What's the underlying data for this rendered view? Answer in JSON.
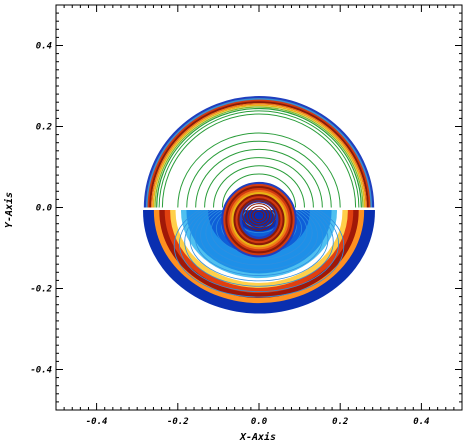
{
  "chart_data": {
    "type": "contour",
    "xlabel": "X-Axis",
    "ylabel": "Y-Axis",
    "xlim": [
      -0.5,
      0.5
    ],
    "ylim": [
      -0.5,
      0.5
    ],
    "x_ticks": [
      -0.4,
      -0.2,
      0.0,
      0.2,
      0.4
    ],
    "y_ticks": [
      -0.4,
      -0.2,
      0.0,
      0.2,
      0.4
    ],
    "x_tick_labels": [
      "-0.4",
      "-0.2",
      "0.0",
      "0.2",
      "0.4"
    ],
    "y_tick_labels": [
      "-0.4",
      "-0.2",
      "0.0",
      "0.2",
      "0.4"
    ],
    "grid": false,
    "legend": "none",
    "upper_half": {
      "style": "line contours",
      "outer_ring": {
        "inner_radius": 0.24,
        "outer_radius": 0.28,
        "top_y": 0.27
      },
      "inner_ring": {
        "center": [
          0.0,
          -0.03
        ],
        "radii": [
          0.04,
          0.09
        ]
      },
      "palette": [
        "#1f3fbf",
        "#3a8fd0",
        "#2a9d3a",
        "#7fb82d",
        "#e8b515",
        "#f07818",
        "#d23a10",
        "#8a1a08"
      ]
    },
    "lower_half": {
      "style": "filled contours",
      "outer_ring": {
        "inner_radius": 0.24,
        "outer_radius": 0.28,
        "bottom_y": -0.26
      },
      "inner_ring": {
        "center": [
          0.0,
          -0.03
        ],
        "radii": [
          0.04,
          0.09
        ]
      },
      "palette": [
        "#0a2fb0",
        "#0e5fd8",
        "#1e90e8",
        "#4fc0f0",
        "#ffffff",
        "#ffd04a",
        "#ff9020",
        "#e04010",
        "#a01808"
      ]
    }
  }
}
